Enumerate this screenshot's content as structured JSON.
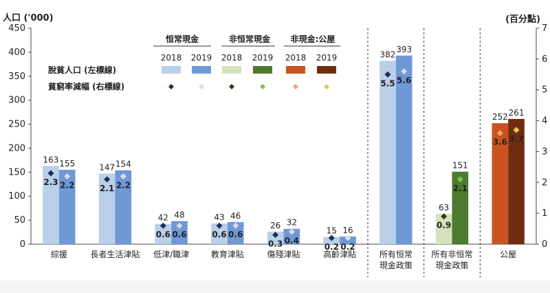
{
  "chart_data": {
    "type": "bar",
    "y_left_label": "人口 ('000)",
    "y_right_label": "(百分點)",
    "ylim_left": [
      0,
      450
    ],
    "ylim_right": [
      0,
      7
    ],
    "yticks_left": [
      "0",
      "50",
      "100",
      "150",
      "200",
      "250",
      "300",
      "350",
      "400",
      "450"
    ],
    "yticks_right": [
      "0",
      "1",
      "2",
      "3",
      "4",
      "5",
      "6",
      "7"
    ],
    "categories": [
      {
        "label": "綜援",
        "group": 0
      },
      {
        "label": "長者生活津貼",
        "group": 0
      },
      {
        "label": "低津/職津",
        "group": 0
      },
      {
        "label": "教育津貼",
        "group": 0
      },
      {
        "label": "傷殘津貼",
        "group": 0
      },
      {
        "label": "高齡津貼",
        "group": 0
      },
      {
        "label": "所有恒常\n現金政策",
        "group": 0
      },
      {
        "label": "所有非恒常\n現金政策",
        "group": 1
      },
      {
        "label": "公屋",
        "group": 2
      }
    ],
    "bars_2018": [
      163,
      147,
      42,
      43,
      26,
      15,
      382,
      63,
      252
    ],
    "bars_2019": [
      155,
      154,
      48,
      46,
      32,
      16,
      393,
      151,
      261
    ],
    "rates_2018": [
      2.3,
      2.1,
      0.6,
      0.6,
      0.3,
      0.2,
      5.5,
      0.9,
      3.6
    ],
    "rates_2019": [
      2.2,
      2.2,
      0.6,
      0.6,
      0.4,
      0.2,
      5.6,
      2.1,
      3.7
    ],
    "rate_labels_2018": [
      "2.3",
      "2.1",
      "0.6",
      "0.6",
      "0.3",
      "0.2",
      "5.5",
      "0.9",
      "3.6"
    ],
    "rate_labels_2019": [
      "2.2",
      "2.2",
      "0.6",
      "0.6",
      "0.4",
      "0.2",
      "5.6",
      "2.1",
      "3.7"
    ],
    "groups": [
      {
        "name": "恒常現金",
        "bar_2018": "#b9cfea",
        "bar_2019": "#6f98d6",
        "dia_2018": "#1b2f55",
        "dia_2019": "#d7dde6"
      },
      {
        "name": "非恒常現金",
        "bar_2018": "#d3e2bd",
        "bar_2019": "#4c7a2e",
        "dia_2018": "#2f3b16",
        "dia_2019": "#7fc24a"
      },
      {
        "name": "非現金:公屋",
        "bar_2018": "#c8531f",
        "bar_2019": "#6e2d10",
        "dia_2018": "#f0a16a",
        "dia_2019": "#f2c53a"
      }
    ],
    "legend": {
      "row1_label": "脫貧人口 (左標線)",
      "row2_label": "貧窮率減幅 (右標線)",
      "year_2018": "2018",
      "year_2019": "2019"
    }
  }
}
